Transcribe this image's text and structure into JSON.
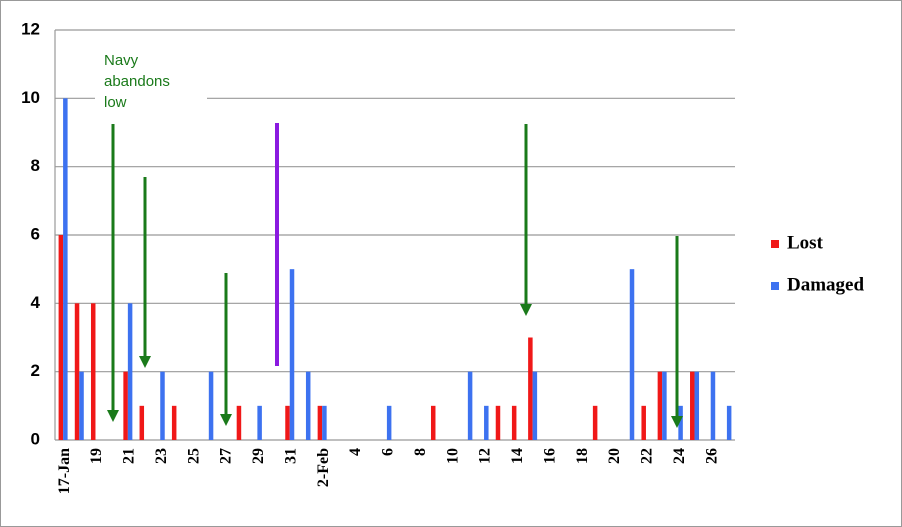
{
  "chart_data": {
    "type": "bar",
    "categories": [
      "17-Jan",
      null,
      "19",
      null,
      "21",
      null,
      "23",
      null,
      "25",
      null,
      "27",
      null,
      "29",
      null,
      "31",
      null,
      "2-Feb",
      null,
      "4",
      null,
      "6",
      null,
      "8",
      null,
      "10",
      null,
      "12",
      null,
      "14",
      null,
      "16",
      null,
      "18",
      null,
      "20",
      null,
      "22",
      null,
      "24",
      null,
      "26",
      null
    ],
    "series": [
      {
        "name": "Lost",
        "color": "#f01818",
        "values": [
          6,
          4,
          4,
          null,
          2,
          1,
          null,
          1,
          null,
          null,
          null,
          1,
          null,
          null,
          1,
          null,
          1,
          null,
          null,
          null,
          null,
          null,
          null,
          1,
          null,
          null,
          null,
          1,
          1,
          3,
          null,
          null,
          null,
          1,
          null,
          null,
          1,
          2,
          null,
          2,
          null,
          null
        ]
      },
      {
        "name": "Damaged",
        "color": "#3d72f0",
        "values": [
          10,
          2,
          null,
          null,
          4,
          null,
          2,
          null,
          null,
          2,
          null,
          null,
          1,
          null,
          5,
          2,
          1,
          null,
          null,
          null,
          1,
          null,
          null,
          null,
          null,
          2,
          1,
          null,
          null,
          2,
          null,
          null,
          null,
          null,
          null,
          5,
          null,
          2,
          1,
          2,
          2,
          1
        ]
      }
    ],
    "ylim": [
      0,
      12
    ],
    "yticks": [
      0,
      2,
      4,
      6,
      8,
      10,
      12
    ],
    "grid": true,
    "annotation": "Navy abandons low"
  }
}
